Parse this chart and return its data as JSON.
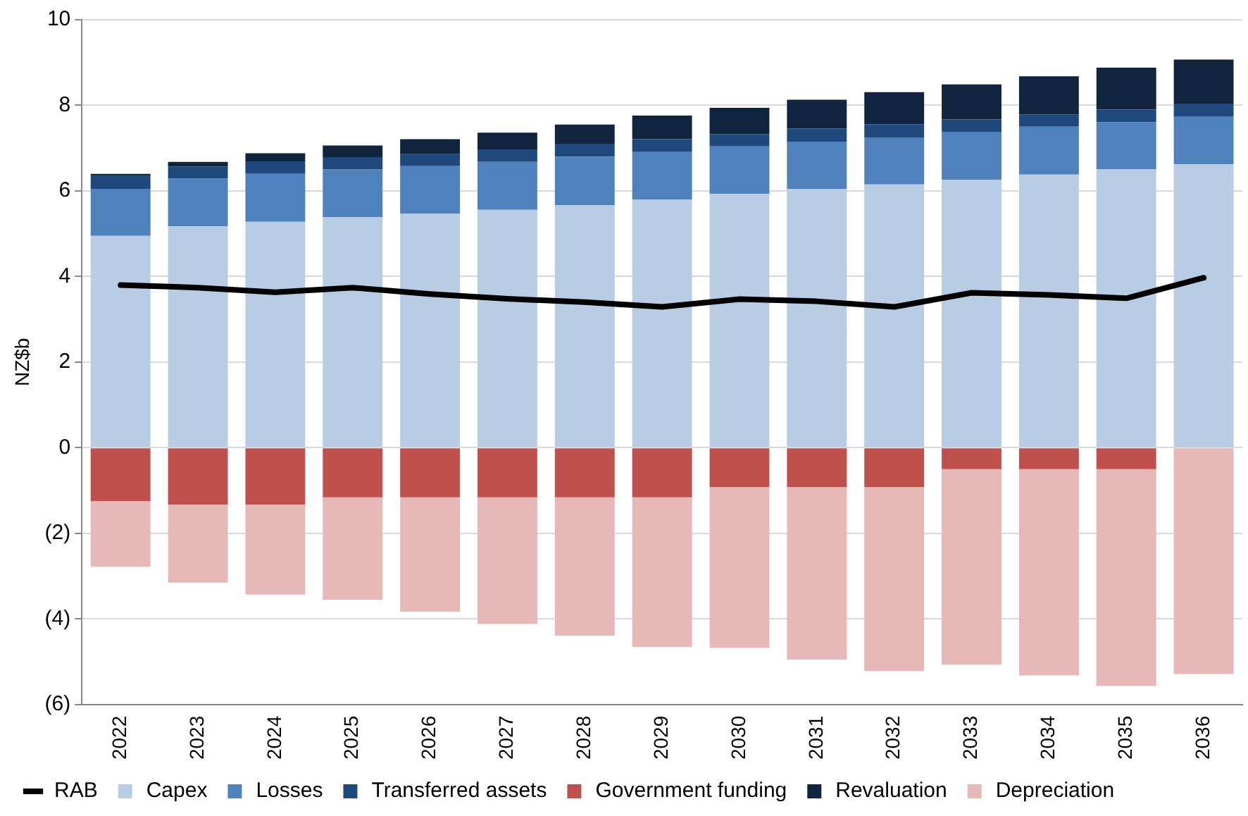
{
  "chart_data": {
    "type": "bar",
    "stacked": true,
    "ylabel": "NZ$b",
    "categories": [
      "2022",
      "2023",
      "2024",
      "2025",
      "2026",
      "2027",
      "2028",
      "2029",
      "2030",
      "2031",
      "2032",
      "2033",
      "2034",
      "2035",
      "2036"
    ],
    "series": [
      {
        "name": "Capex",
        "color": "#b8cce4",
        "values": [
          4.95,
          5.17,
          5.28,
          5.39,
          5.47,
          5.56,
          5.67,
          5.8,
          5.93,
          6.04,
          6.15,
          6.26,
          6.38,
          6.51,
          6.62
        ]
      },
      {
        "name": "Losses",
        "color": "#4f81bd",
        "values": [
          1.1,
          1.12,
          1.12,
          1.11,
          1.11,
          1.12,
          1.13,
          1.11,
          1.11,
          1.11,
          1.1,
          1.12,
          1.12,
          1.1,
          1.11
        ]
      },
      {
        "name": "Transferred assets",
        "color": "#1f497d",
        "values": [
          0.3,
          0.28,
          0.29,
          0.29,
          0.28,
          0.29,
          0.3,
          0.3,
          0.29,
          0.31,
          0.31,
          0.29,
          0.29,
          0.29,
          0.31
        ]
      },
      {
        "name": "Government funding",
        "color": "#c0504d",
        "values": [
          -1.25,
          -1.33,
          -1.33,
          -1.16,
          -1.16,
          -1.16,
          -1.16,
          -1.16,
          -0.92,
          -0.92,
          -0.92,
          -0.5,
          -0.5,
          -0.5,
          0
        ]
      },
      {
        "name": "Revaluation",
        "color": "#10243e",
        "values": [
          0.05,
          0.11,
          0.19,
          0.27,
          0.35,
          0.39,
          0.45,
          0.55,
          0.61,
          0.67,
          0.75,
          0.82,
          0.89,
          0.98,
          1.03
        ]
      },
      {
        "name": "Depreciation",
        "color": "#e6b8b7",
        "values": [
          -1.53,
          -1.82,
          -2.1,
          -2.39,
          -2.67,
          -2.96,
          -3.23,
          -3.5,
          -3.76,
          -4.03,
          -4.3,
          -4.57,
          -4.82,
          -5.07,
          -5.29
        ]
      },
      {
        "name": "RAB",
        "type": "line",
        "color": "#000000",
        "values": [
          3.8,
          3.74,
          3.63,
          3.74,
          3.59,
          3.48,
          3.4,
          3.29,
          3.47,
          3.42,
          3.29,
          3.62,
          3.57,
          3.49,
          3.97
        ]
      }
    ],
    "ylim": [
      -6,
      10
    ],
    "yticks": [
      {
        "value": -6,
        "label": "(6)"
      },
      {
        "value": -4,
        "label": "(4)"
      },
      {
        "value": -2,
        "label": "(2)"
      },
      0,
      2,
      4,
      6,
      8,
      10
    ],
    "grid": "y",
    "legend": "bottom",
    "marker": "none",
    "line_style": "solid"
  }
}
